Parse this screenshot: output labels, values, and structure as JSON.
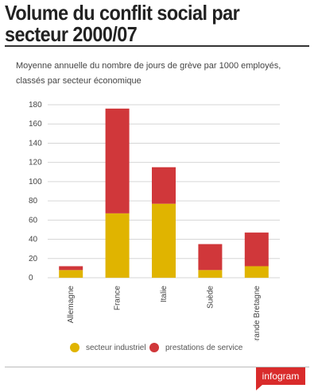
{
  "header": {
    "title": "Volume du conflit social par secteur 2000/07",
    "subtitle": "Moyenne annuelle du nombre de jours de grève par 1000 employés, classés par secteur économique"
  },
  "colors": {
    "industrial": "#e0b400",
    "services": "#d0373a",
    "grid": "#d6d6d6",
    "brand": "#d92b2b"
  },
  "legend": {
    "industrial_label": "secteur industriel",
    "services_label": "prestations de service"
  },
  "branding": {
    "logo_text": "infogram"
  },
  "chart_data": {
    "type": "bar",
    "stacked": true,
    "title": "Volume du conflit social par secteur 2000/07",
    "subtitle": "Moyenne annuelle du nombre de jours de grève par 1000 employés, classés par secteur économique",
    "categories": [
      "Allemagne",
      "France",
      "Italie",
      "Suède",
      "Grande Bretagne"
    ],
    "series": [
      {
        "name": "secteur industriel",
        "values": [
          8,
          67,
          77,
          8,
          12
        ]
      },
      {
        "name": "prestations de service",
        "values": [
          4,
          109,
          38,
          27,
          35
        ]
      }
    ],
    "ylim": [
      0,
      180
    ],
    "yticks": [
      0,
      20,
      40,
      60,
      80,
      100,
      120,
      140,
      160,
      180
    ],
    "grid": true,
    "legend_position": "bottom"
  }
}
